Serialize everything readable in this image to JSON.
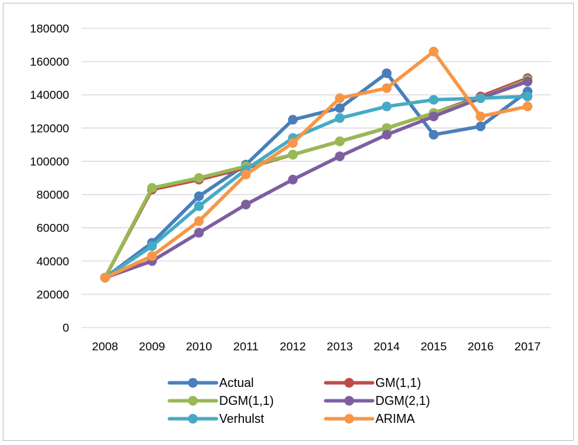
{
  "chart_data": {
    "type": "line",
    "title": "",
    "xlabel": "",
    "ylabel": "",
    "categories": [
      "2008",
      "2009",
      "2010",
      "2011",
      "2012",
      "2013",
      "2014",
      "2015",
      "2016",
      "2017"
    ],
    "ylim": [
      0,
      180000
    ],
    "yticks": [
      0,
      20000,
      40000,
      60000,
      80000,
      100000,
      120000,
      140000,
      160000,
      180000
    ],
    "ytick_labels": [
      "0",
      "20000",
      "40000",
      "60000",
      "80000",
      "100000",
      "120000",
      "140000",
      "160000",
      "180000"
    ],
    "grid": "horizontal",
    "legend_position": "bottom",
    "series": [
      {
        "name": "Actual",
        "color": "#4a7ebb",
        "values": [
          30000,
          51000,
          79000,
          98000,
          125000,
          132000,
          153000,
          116000,
          121000,
          142000
        ]
      },
      {
        "name": "GM(1,1)",
        "color": "#be4b48",
        "values": [
          30000,
          83000,
          89000,
          96000,
          104000,
          112000,
          120000,
          129000,
          139000,
          150000
        ]
      },
      {
        "name": "DGM(1,1)",
        "color": "#98b954",
        "values": [
          30000,
          84000,
          90000,
          97000,
          104000,
          112000,
          120000,
          129000,
          138000,
          149000
        ]
      },
      {
        "name": "DGM(2,1)",
        "color": "#7d5fa0",
        "values": [
          30000,
          40000,
          57000,
          74000,
          89000,
          103000,
          116000,
          127000,
          138000,
          148000
        ]
      },
      {
        "name": "Verhulst",
        "color": "#46aac5",
        "values": [
          30000,
          49000,
          73000,
          95000,
          114000,
          126000,
          133000,
          137000,
          138000,
          139000
        ]
      },
      {
        "name": "ARIMA",
        "color": "#f79646",
        "values": [
          30000,
          43000,
          64000,
          92000,
          111000,
          138000,
          144000,
          166000,
          127000,
          133000
        ]
      }
    ]
  }
}
